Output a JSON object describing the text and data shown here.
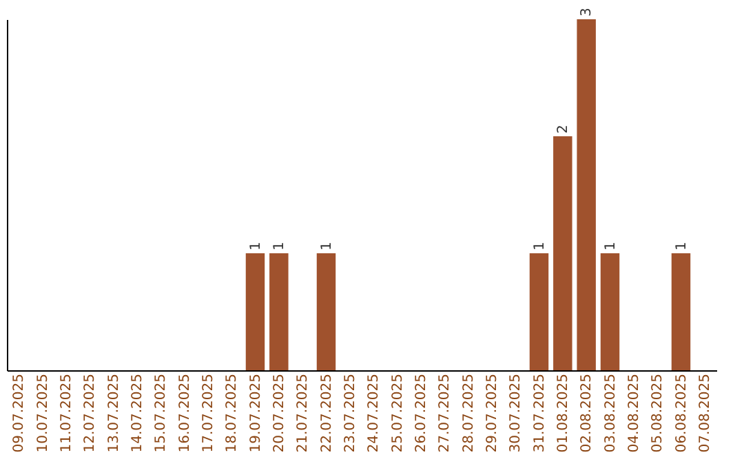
{
  "chart_data": {
    "type": "bar",
    "categories": [
      "09.07.2025",
      "10.07.2025",
      "11.07.2025",
      "12.07.2025",
      "13.07.2025",
      "14.07.2025",
      "15.07.2025",
      "16.07.2025",
      "17.07.2025",
      "18.07.2025",
      "19.07.2025",
      "20.07.2025",
      "21.07.2025",
      "22.07.2025",
      "23.07.2025",
      "24.07.2025",
      "25.07.2025",
      "26.07.2025",
      "27.07.2025",
      "28.07.2025",
      "29.07.2025",
      "30.07.2025",
      "31.07.2025",
      "01.08.2025",
      "02.08.2025",
      "03.08.2025",
      "04.08.2025",
      "05.08.2025",
      "06.08.2025",
      "07.08.2025"
    ],
    "values": [
      0,
      0,
      0,
      0,
      0,
      0,
      0,
      0,
      0,
      0,
      1,
      1,
      0,
      1,
      0,
      0,
      0,
      0,
      0,
      0,
      0,
      0,
      1,
      2,
      3,
      1,
      0,
      0,
      1,
      0
    ],
    "value_labels": [
      null,
      null,
      null,
      null,
      null,
      null,
      null,
      null,
      null,
      null,
      "1",
      "1",
      null,
      "1",
      null,
      null,
      null,
      null,
      null,
      null,
      null,
      null,
      "1",
      "2",
      "3",
      "1",
      null,
      null,
      "1",
      null
    ],
    "color": "#a0522d",
    "tick_labels": "x"
  }
}
